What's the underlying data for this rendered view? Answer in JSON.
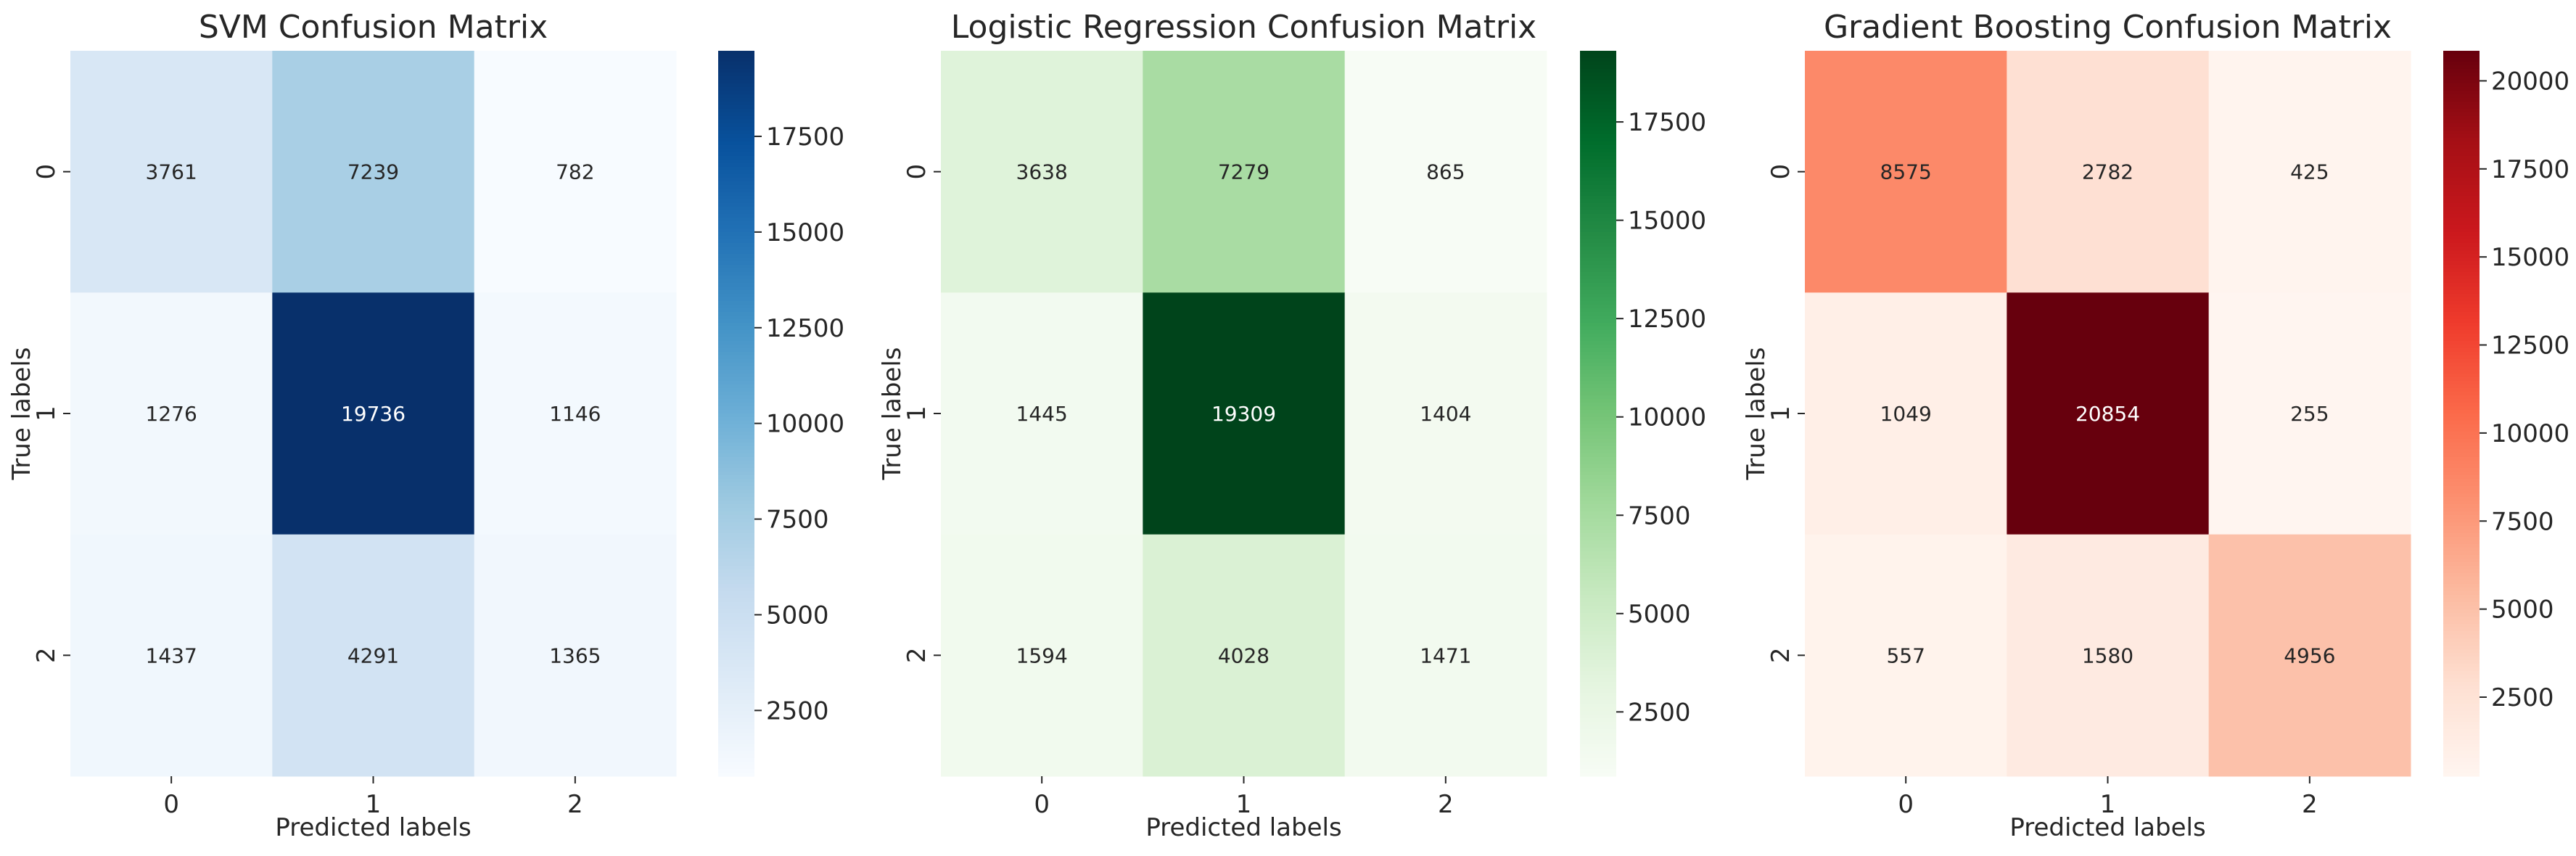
{
  "chart_data": [
    {
      "type": "heatmap",
      "title": "SVM Confusion Matrix",
      "xlabel": "Predicted labels",
      "ylabel": "True labels",
      "x_categories": [
        "0",
        "1",
        "2"
      ],
      "y_categories": [
        "0",
        "1",
        "2"
      ],
      "values": [
        [
          3761,
          7239,
          782
        ],
        [
          1276,
          19736,
          1146
        ],
        [
          1437,
          4291,
          1365
        ]
      ],
      "colormap": "Blues",
      "colorbar_ticks": [
        2500,
        5000,
        7500,
        10000,
        12500,
        15000,
        17500
      ],
      "colorbar_range": [
        782,
        19736
      ]
    },
    {
      "type": "heatmap",
      "title": "Logistic Regression Confusion Matrix",
      "xlabel": "Predicted labels",
      "ylabel": "True labels",
      "x_categories": [
        "0",
        "1",
        "2"
      ],
      "y_categories": [
        "0",
        "1",
        "2"
      ],
      "values": [
        [
          3638,
          7279,
          865
        ],
        [
          1445,
          19309,
          1404
        ],
        [
          1594,
          4028,
          1471
        ]
      ],
      "colormap": "Greens",
      "colorbar_ticks": [
        2500,
        5000,
        7500,
        10000,
        12500,
        15000,
        17500
      ],
      "colorbar_range": [
        865,
        19309
      ]
    },
    {
      "type": "heatmap",
      "title": "Gradient Boosting Confusion Matrix",
      "xlabel": "Predicted labels",
      "ylabel": "True labels",
      "x_categories": [
        "0",
        "1",
        "2"
      ],
      "y_categories": [
        "0",
        "1",
        "2"
      ],
      "values": [
        [
          8575,
          2782,
          425
        ],
        [
          1049,
          20854,
          255
        ],
        [
          557,
          1580,
          4956
        ]
      ],
      "colormap": "Reds",
      "colorbar_ticks": [
        2500,
        5000,
        7500,
        10000,
        12500,
        15000,
        17500,
        20000
      ],
      "colorbar_range": [
        255,
        20854
      ]
    }
  ],
  "colors": {
    "Blues": [
      "#f7fbff",
      "#deebf7",
      "#c6dbef",
      "#9ecae1",
      "#6baed6",
      "#4292c6",
      "#2171b5",
      "#08519c",
      "#08306b"
    ],
    "Greens": [
      "#f7fcf5",
      "#e5f5e0",
      "#c7e9c0",
      "#a1d99b",
      "#74c476",
      "#41ab5d",
      "#238b45",
      "#006d2c",
      "#00441b"
    ],
    "Reds": [
      "#fff5f0",
      "#fee0d2",
      "#fcbba1",
      "#fc9272",
      "#fb6a4a",
      "#ef3b2c",
      "#cb181d",
      "#a50f15",
      "#67000d"
    ]
  }
}
